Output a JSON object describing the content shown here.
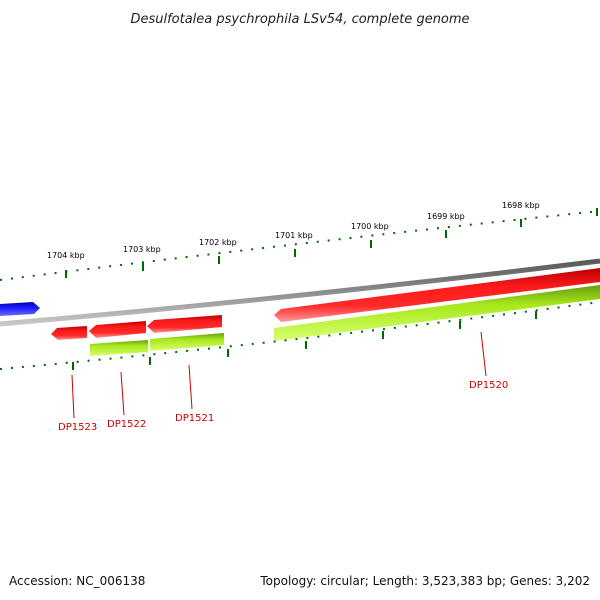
{
  "title": "Desulfotalea psychrophila LSv54, complete genome",
  "scale_labels": [
    "1704 kbp",
    "1703 kbp",
    "1702 kbp",
    "1701 kbp",
    "1700 kbp",
    "1699 kbp",
    "1698 kbp"
  ],
  "gene_labels": [
    "DP1523",
    "DP1522",
    "DP1521",
    "DP1520"
  ],
  "footer": {
    "accession": "Accession: NC_006138",
    "summary": "Topology: circular; Length: 3,523,383 bp; Genes: 3,202"
  },
  "colors": {
    "forward_cds": "#ff0000",
    "reverse_rna": "#99ff00",
    "other_feature": "#0000ff",
    "backbone": "#808080",
    "ticks": "#006600",
    "label": "#cc0000"
  }
}
